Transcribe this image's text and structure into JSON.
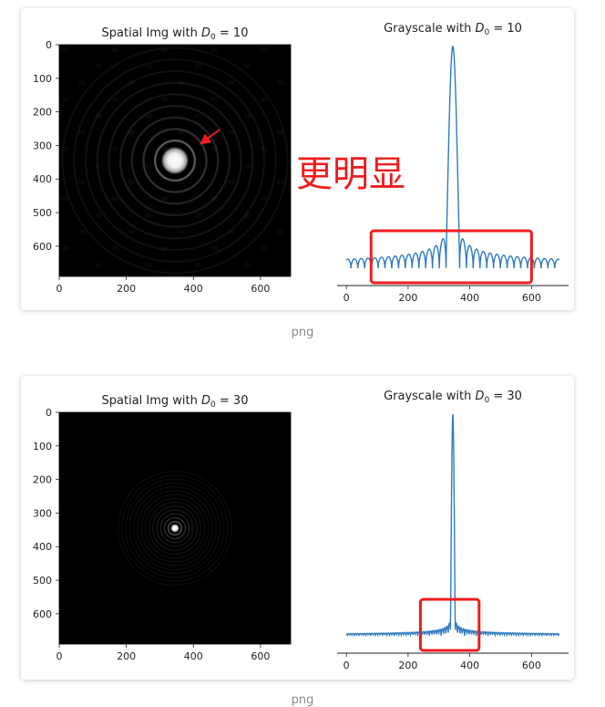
{
  "caption1": "png",
  "caption2": "png",
  "annotation_text": "更明显",
  "colors": {
    "line": "#2f7bbf",
    "highlight": "#ee1c1c",
    "image_bg": "#000000"
  },
  "chart_data": [
    {
      "type": "heatmap",
      "title": "Spatial Img with D0 = 10",
      "title_parts": {
        "prefix": "Spatial Img with ",
        "sym": "D",
        "sub": "0",
        "suffix": " = 10"
      },
      "D0": 10,
      "image_size": [
        690,
        690
      ],
      "center": [
        345,
        345
      ],
      "xticks": [
        0,
        200,
        400,
        600
      ],
      "yticks": [
        0,
        100,
        200,
        300,
        400,
        500,
        600
      ],
      "xlim": [
        0,
        690
      ],
      "ylim": [
        690,
        0
      ],
      "colormap": "gray",
      "annotation": "red arrow pointing to ring near (400, 290)"
    },
    {
      "type": "line",
      "title": "Grayscale with D0 = 10",
      "title_parts": {
        "prefix": "Grayscale with ",
        "sym": "D",
        "sub": "0",
        "suffix": " = 10"
      },
      "D0": 10,
      "peak": {
        "x": 345,
        "value": 1.0
      },
      "xticks": [
        0,
        200,
        400,
        600
      ],
      "xlim": [
        -30,
        720
      ],
      "show_yaxis": false,
      "highlight_box_x": [
        80,
        600
      ]
    },
    {
      "type": "heatmap",
      "title": "Spatial Img with D0 = 30",
      "title_parts": {
        "prefix": "Spatial Img with ",
        "sym": "D",
        "sub": "0",
        "suffix": " = 30"
      },
      "D0": 30,
      "image_size": [
        690,
        690
      ],
      "center": [
        345,
        345
      ],
      "xticks": [
        0,
        200,
        400,
        600
      ],
      "yticks": [
        0,
        100,
        200,
        300,
        400,
        500,
        600
      ],
      "xlim": [
        0,
        690
      ],
      "ylim": [
        690,
        0
      ],
      "colormap": "gray"
    },
    {
      "type": "line",
      "title": "Grayscale with D0 = 30",
      "title_parts": {
        "prefix": "Grayscale with ",
        "sym": "D",
        "sub": "0",
        "suffix": " = 30"
      },
      "D0": 30,
      "peak": {
        "x": 345,
        "value": 1.0
      },
      "xticks": [
        0,
        200,
        400,
        600
      ],
      "xlim": [
        -30,
        720
      ],
      "show_yaxis": false,
      "highlight_box_x": [
        240,
        430
      ]
    }
  ]
}
